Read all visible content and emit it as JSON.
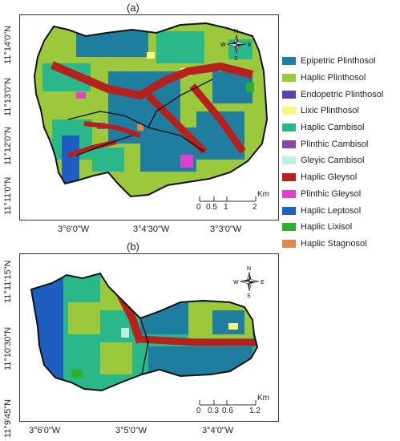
{
  "panel_a": {
    "label": "(a)",
    "lat_labels": [
      "11°14'0\"N",
      "11°13'0\"N",
      "11°12'0\"N",
      "11°11'0\"N"
    ],
    "lon_labels": [
      "3°6'0\"W",
      "3°4'30\"W",
      "3°3'0\"W"
    ],
    "scale": {
      "ticks": [
        "0",
        "0.5",
        "1",
        "2"
      ],
      "unit": "Km"
    }
  },
  "panel_b": {
    "label": "(b)",
    "lat_labels": [
      "11°11'15\"N",
      "11°10'30\"N",
      "11°9'45\"N"
    ],
    "lon_labels": [
      "3°6'0\"W",
      "3°5'0\"W",
      "3°4'0\"W"
    ],
    "scale": {
      "ticks": [
        "0",
        "0.3",
        "0.6",
        "1.2"
      ],
      "unit": "Km"
    }
  },
  "compass": {
    "n": "N",
    "s": "S",
    "e": "E",
    "w": "W"
  },
  "legend": [
    {
      "name": "Epipetric Plinthosol",
      "color": "#1f7da0"
    },
    {
      "name": "Haplic Plinthosol",
      "color": "#9cc83c"
    },
    {
      "name": "Endopetric Plinthosol",
      "color": "#5a3fb8"
    },
    {
      "name": "Lixic Plinthosol",
      "color": "#f7f77a"
    },
    {
      "name": "Haplic Cambisol",
      "color": "#2ab88a"
    },
    {
      "name": "Plinthic Cambisol",
      "color": "#8e44ad"
    },
    {
      "name": "Gleyic Cambisol",
      "color": "#b8f2e6"
    },
    {
      "name": "Haplic Gleysol",
      "color": "#b5221e"
    },
    {
      "name": "Plinthic Gleysol",
      "color": "#e23ecf"
    },
    {
      "name": "Haplic Leptosol",
      "color": "#1d5ec0"
    },
    {
      "name": "Haplic Lixisol",
      "color": "#2db02a"
    },
    {
      "name": "Haplic Stagnosol",
      "color": "#e0884a"
    }
  ]
}
